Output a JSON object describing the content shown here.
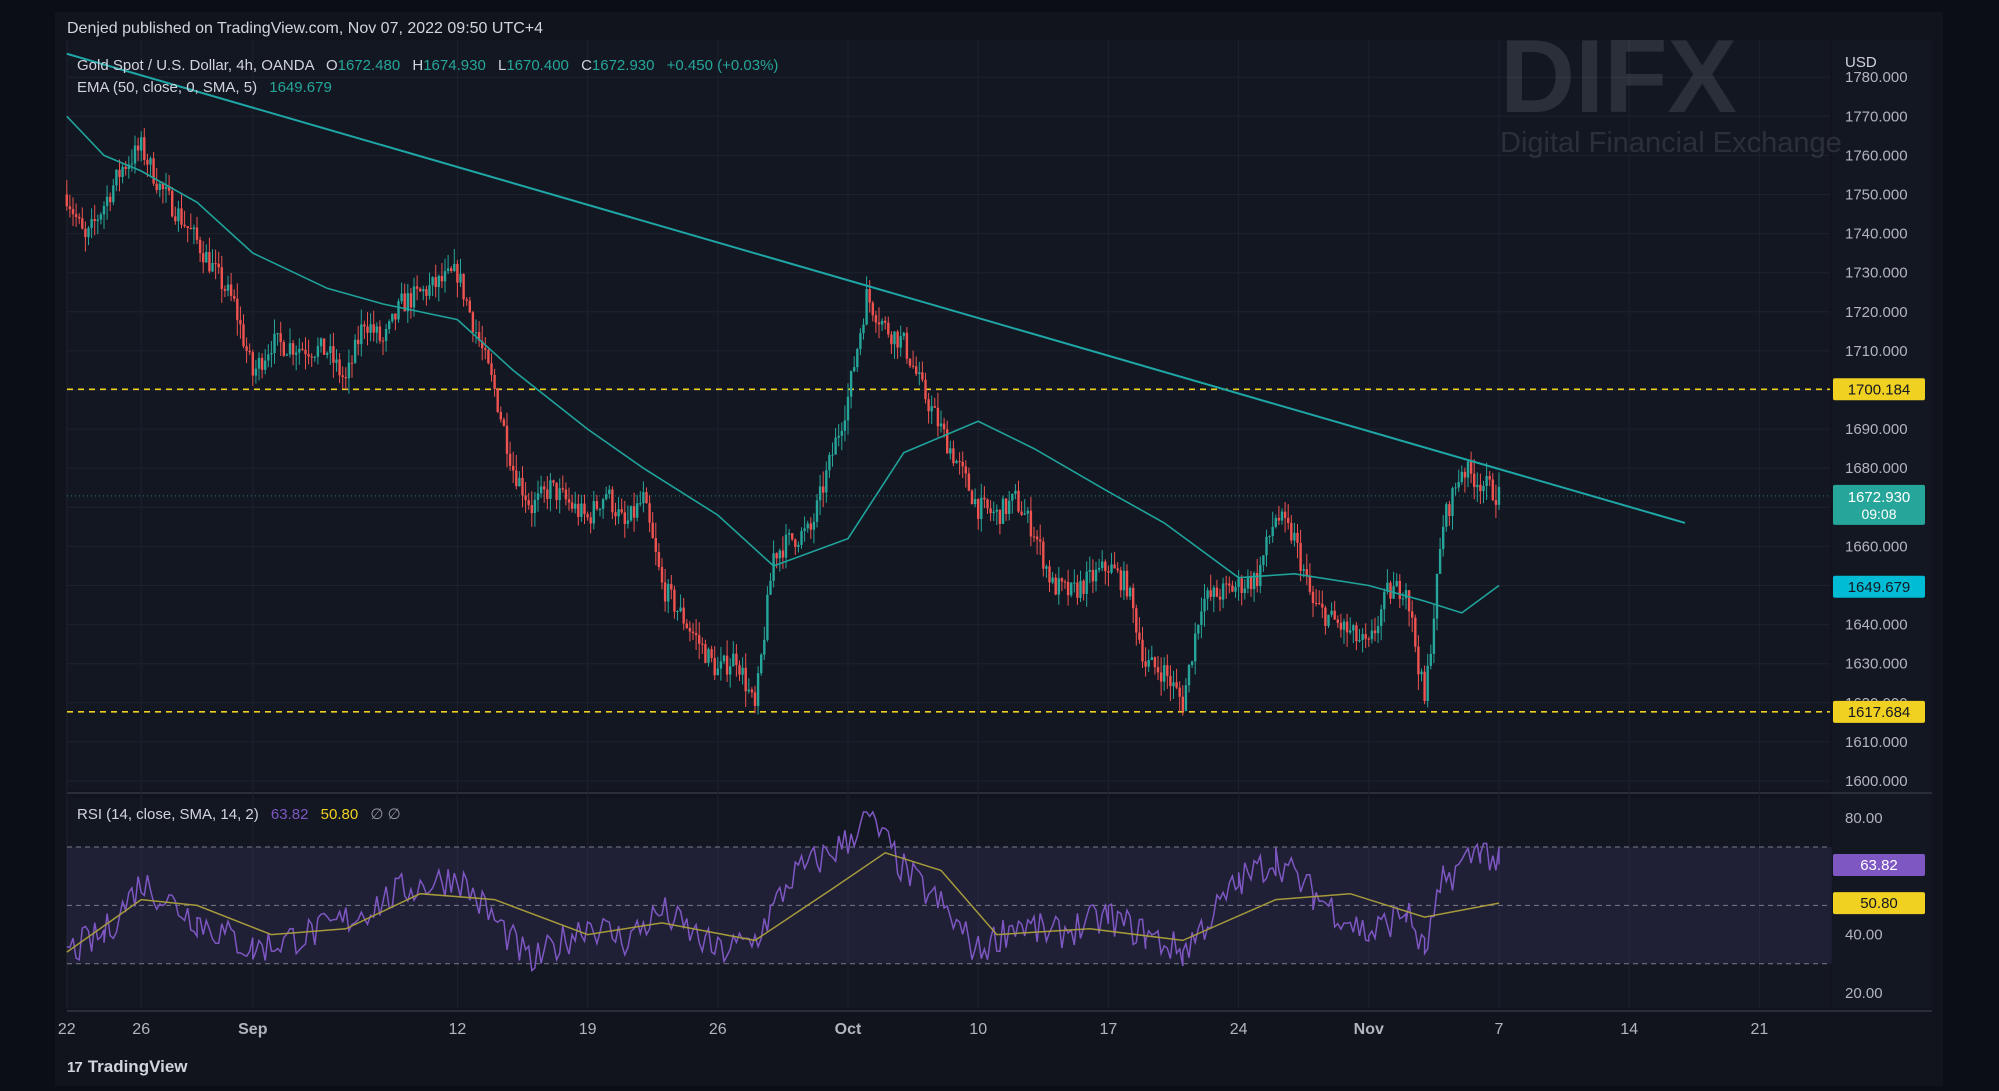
{
  "header": {
    "publish_line": "Denjed published on TradingView.com, Nov 07, 2022 09:50 UTC+4"
  },
  "footer": {
    "brand": "TradingView",
    "logo": "tv-logo-icon"
  },
  "watermark": {
    "logo_text": "DIFX",
    "tagline": "Digital Financial Exchange"
  },
  "legend": {
    "symbol": "Gold Spot / U.S. Dollar, 4h, OANDA",
    "o_label": "O",
    "o_value": "1672.480",
    "h_label": "H",
    "h_value": "1674.930",
    "l_label": "L",
    "l_value": "1670.400",
    "c_label": "C",
    "c_value": "1672.930",
    "change": "+0.450 (+0.03%)",
    "ema_label": "EMA (50, close, 0, SMA, 5)",
    "ema_value": "1649.679"
  },
  "rsi_legend": {
    "label": "RSI (14, close, SMA, 14, 2)",
    "rsi_value": "63.82",
    "sma_value": "50.80",
    "extra": "∅ ∅"
  },
  "badges": {
    "resistance": "1700.184",
    "price": "1672.930",
    "countdown": "09:08",
    "ema": "1649.679",
    "support": "1617.684",
    "rsi": "63.82",
    "rsi_sma": "50.80"
  },
  "colors": {
    "up": "#26a69a",
    "down": "#ef5350",
    "ema": "#1fa39b",
    "trendline": "#1fa6a6",
    "level": "#f0d020",
    "rsi": "#7e57c2",
    "rsi_sma": "#a59a3c",
    "ema_badge": "#00bcd4"
  },
  "chart_data": [
    {
      "type": "candlestick",
      "title": "Gold Spot / U.S. Dollar, 4h, OANDA",
      "currency_label": "USD",
      "y_ticks": [
        "1600.000",
        "1610.000",
        "1620.000",
        "1630.000",
        "1640.000",
        "1650.000",
        "1660.000",
        "1670.000",
        "1680.000",
        "1690.000",
        "1700.000",
        "1710.000",
        "1720.000",
        "1730.000",
        "1740.000",
        "1750.000",
        "1760.000",
        "1770.000",
        "1780.000"
      ],
      "ylim": [
        1597,
        1784
      ],
      "x_tick_labels": [
        "22",
        "26",
        "Sep",
        "12",
        "19",
        "26",
        "Oct",
        "10",
        "17",
        "24",
        "Nov",
        "7",
        "14",
        "21"
      ],
      "x_tick_dates": [
        "2022-08-22",
        "2022-08-26",
        "2022-09-01",
        "2022-09-12",
        "2022-09-19",
        "2022-09-26",
        "2022-10-03",
        "2022-10-10",
        "2022-10-17",
        "2022-10-24",
        "2022-10-31",
        "2022-11-07",
        "2022-11-14",
        "2022-11-21"
      ],
      "close_path": [
        [
          "2022-08-22",
          1750
        ],
        [
          "2022-08-23",
          1738
        ],
        [
          "2022-08-25",
          1757
        ],
        [
          "2022-08-26",
          1762
        ],
        [
          "2022-08-27",
          1752
        ],
        [
          "2022-08-29",
          1738
        ],
        [
          "2022-08-31",
          1722
        ],
        [
          "2022-09-01",
          1704
        ],
        [
          "2022-09-02",
          1712
        ],
        [
          "2022-09-05",
          1710
        ],
        [
          "2022-09-06",
          1702
        ],
        [
          "2022-09-07",
          1718
        ],
        [
          "2022-09-08",
          1712
        ],
        [
          "2022-09-09",
          1722
        ],
        [
          "2022-09-12",
          1730
        ],
        [
          "2022-09-13",
          1715
        ],
        [
          "2022-09-14",
          1700
        ],
        [
          "2022-09-15",
          1680
        ],
        [
          "2022-09-16",
          1670
        ],
        [
          "2022-09-17",
          1675
        ],
        [
          "2022-09-19",
          1667
        ],
        [
          "2022-09-20",
          1674
        ],
        [
          "2022-09-21",
          1665
        ],
        [
          "2022-09-22",
          1672
        ],
        [
          "2022-09-23",
          1650
        ],
        [
          "2022-09-26",
          1628
        ],
        [
          "2022-09-27",
          1632
        ],
        [
          "2022-09-28",
          1618
        ],
        [
          "2022-09-29",
          1658
        ],
        [
          "2022-09-30",
          1662
        ],
        [
          "2022-10-01",
          1664
        ],
        [
          "2022-10-03",
          1698
        ],
        [
          "2022-10-04",
          1724
        ],
        [
          "2022-10-05",
          1716
        ],
        [
          "2022-10-06",
          1712
        ],
        [
          "2022-10-07",
          1700
        ],
        [
          "2022-10-10",
          1670
        ],
        [
          "2022-10-11",
          1668
        ],
        [
          "2022-10-12",
          1672
        ],
        [
          "2022-10-13",
          1664
        ],
        [
          "2022-10-14",
          1650
        ],
        [
          "2022-10-15",
          1648
        ],
        [
          "2022-10-17",
          1655
        ],
        [
          "2022-10-18",
          1650
        ],
        [
          "2022-10-19",
          1630
        ],
        [
          "2022-10-20",
          1628
        ],
        [
          "2022-10-21",
          1620
        ],
        [
          "2022-10-22",
          1646
        ],
        [
          "2022-10-24",
          1650
        ],
        [
          "2022-10-25",
          1652
        ],
        [
          "2022-10-26",
          1668
        ],
        [
          "2022-10-27",
          1662
        ],
        [
          "2022-10-28",
          1645
        ],
        [
          "2022-10-31",
          1634
        ],
        [
          "2022-11-01",
          1648
        ],
        [
          "2022-11-02",
          1650
        ],
        [
          "2022-11-03",
          1620
        ],
        [
          "2022-11-04",
          1666
        ],
        [
          "2022-11-05",
          1680
        ],
        [
          "2022-11-07",
          1673
        ]
      ],
      "ema_path": [
        [
          "2022-08-22",
          1770
        ],
        [
          "2022-08-24",
          1760
        ],
        [
          "2022-08-26",
          1756
        ],
        [
          "2022-08-29",
          1748
        ],
        [
          "2022-09-01",
          1735
        ],
        [
          "2022-09-05",
          1726
        ],
        [
          "2022-09-08",
          1722
        ],
        [
          "2022-09-12",
          1718
        ],
        [
          "2022-09-15",
          1705
        ],
        [
          "2022-09-19",
          1690
        ],
        [
          "2022-09-22",
          1680
        ],
        [
          "2022-09-26",
          1668
        ],
        [
          "2022-09-29",
          1655
        ],
        [
          "2022-10-03",
          1662
        ],
        [
          "2022-10-06",
          1684
        ],
        [
          "2022-10-10",
          1692
        ],
        [
          "2022-10-13",
          1685
        ],
        [
          "2022-10-17",
          1674
        ],
        [
          "2022-10-20",
          1666
        ],
        [
          "2022-10-24",
          1652
        ],
        [
          "2022-10-27",
          1653
        ],
        [
          "2022-10-31",
          1650
        ],
        [
          "2022-11-03",
          1646
        ],
        [
          "2022-11-05",
          1643
        ],
        [
          "2022-11-07",
          1650
        ]
      ],
      "trendline": {
        "start": [
          "2022-08-22",
          1786
        ],
        "end": [
          "2022-11-17",
          1666
        ]
      },
      "horizontal_levels": [
        1700.184,
        1617.684
      ],
      "last_price": 1672.93,
      "ema_last": 1649.679
    },
    {
      "type": "line",
      "title": "RSI (14, close, SMA, 14, 2)",
      "y_ticks": [
        "20.00",
        "40.00",
        "80.00"
      ],
      "ylim": [
        17,
        83
      ],
      "band": [
        30,
        70
      ],
      "midline": 50,
      "rsi_path": [
        [
          "2022-08-22",
          34
        ],
        [
          "2022-08-24",
          40
        ],
        [
          "2022-08-26",
          58
        ],
        [
          "2022-08-29",
          45
        ],
        [
          "2022-09-01",
          35
        ],
        [
          "2022-09-05",
          42
        ],
        [
          "2022-09-07",
          48
        ],
        [
          "2022-09-09",
          55
        ],
        [
          "2022-09-12",
          60
        ],
        [
          "2022-09-14",
          45
        ],
        [
          "2022-09-16",
          30
        ],
        [
          "2022-09-19",
          44
        ],
        [
          "2022-09-21",
          38
        ],
        [
          "2022-09-23",
          48
        ],
        [
          "2022-09-26",
          34
        ],
        [
          "2022-09-28",
          38
        ],
        [
          "2022-09-30",
          60
        ],
        [
          "2022-10-03",
          72
        ],
        [
          "2022-10-04",
          82
        ],
        [
          "2022-10-06",
          62
        ],
        [
          "2022-10-08",
          50
        ],
        [
          "2022-10-10",
          34
        ],
        [
          "2022-10-12",
          44
        ],
        [
          "2022-10-14",
          40
        ],
        [
          "2022-10-17",
          46
        ],
        [
          "2022-10-19",
          40
        ],
        [
          "2022-10-21",
          34
        ],
        [
          "2022-10-24",
          58
        ],
        [
          "2022-10-26",
          66
        ],
        [
          "2022-10-28",
          54
        ],
        [
          "2022-10-31",
          40
        ],
        [
          "2022-11-02",
          48
        ],
        [
          "2022-11-03",
          34
        ],
        [
          "2022-11-04",
          58
        ],
        [
          "2022-11-06",
          70
        ],
        [
          "2022-11-07",
          64
        ]
      ],
      "sma_path": [
        [
          "2022-08-22",
          34
        ],
        [
          "2022-08-26",
          52
        ],
        [
          "2022-08-29",
          50
        ],
        [
          "2022-09-02",
          40
        ],
        [
          "2022-09-06",
          42
        ],
        [
          "2022-09-10",
          54
        ],
        [
          "2022-09-14",
          52
        ],
        [
          "2022-09-19",
          40
        ],
        [
          "2022-09-23",
          44
        ],
        [
          "2022-09-28",
          38
        ],
        [
          "2022-10-02",
          55
        ],
        [
          "2022-10-05",
          68
        ],
        [
          "2022-10-08",
          62
        ],
        [
          "2022-10-11",
          40
        ],
        [
          "2022-10-16",
          42
        ],
        [
          "2022-10-21",
          38
        ],
        [
          "2022-10-26",
          52
        ],
        [
          "2022-10-30",
          54
        ],
        [
          "2022-11-03",
          46
        ],
        [
          "2022-11-07",
          50.8
        ]
      ],
      "rsi_last": 63.82,
      "sma_last": 50.8
    }
  ]
}
